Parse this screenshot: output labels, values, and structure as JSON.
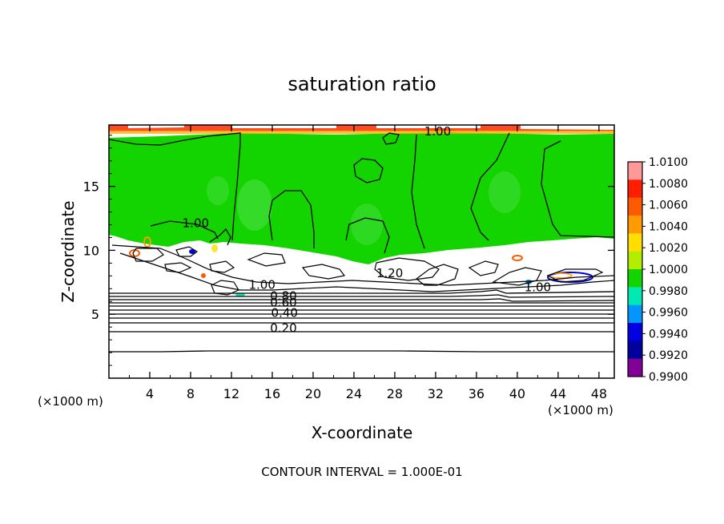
{
  "chart_data": {
    "type": "heatmap",
    "title": "saturation ratio",
    "xlabel": "X-coordinate",
    "ylabel": "Z-coordinate",
    "x_units_left": "(×1000 m)",
    "x_units_right": "(×1000 m)",
    "xlim": [
      0,
      49.5
    ],
    "ylim": [
      0,
      19.8
    ],
    "x_ticks": [
      4,
      8,
      12,
      16,
      20,
      24,
      28,
      32,
      36,
      40,
      44,
      48
    ],
    "y_ticks": [
      5,
      10,
      15
    ],
    "footer": "CONTOUR INTERVAL = 1.000E-01",
    "colorbar": {
      "labels": [
        "1.0100",
        "1.0080",
        "1.0060",
        "1.0040",
        "1.0020",
        "1.0000",
        "0.9980",
        "0.9960",
        "0.9940",
        "0.9920",
        "0.9900"
      ],
      "colors": [
        "#ff9898",
        "#ff1e00",
        "#ff5a00",
        "#ff9a00",
        "#ffde00",
        "#b4ec00",
        "#14d400",
        "#00e8b4",
        "#0096ff",
        "#0000e0",
        "#00009c",
        "#820096"
      ]
    },
    "contour_labels": [
      {
        "text": "1.00",
        "x": 32.2,
        "y": 19.0
      },
      {
        "text": "1.00",
        "x": 8.5,
        "y": 11.8
      },
      {
        "text": "1.20",
        "x": 27.5,
        "y": 7.9
      },
      {
        "text": "1.00",
        "x": 15.0,
        "y": 7.0
      },
      {
        "text": "1.00",
        "x": 42.0,
        "y": 6.8
      },
      {
        "text": "0.80",
        "x": 17.1,
        "y": 6.1
      },
      {
        "text": "0.60",
        "x": 17.1,
        "y": 5.6
      },
      {
        "text": "0.40",
        "x": 17.2,
        "y": 4.8
      },
      {
        "text": "0.20",
        "x": 17.1,
        "y": 3.6
      }
    ]
  }
}
